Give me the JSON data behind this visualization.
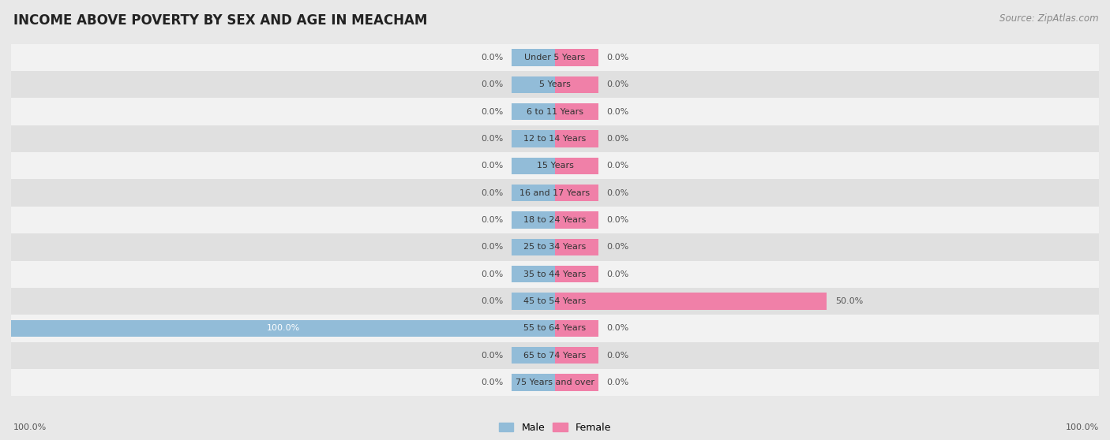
{
  "title": "INCOME ABOVE POVERTY BY SEX AND AGE IN MEACHAM",
  "source": "Source: ZipAtlas.com",
  "categories": [
    "Under 5 Years",
    "5 Years",
    "6 to 11 Years",
    "12 to 14 Years",
    "15 Years",
    "16 and 17 Years",
    "18 to 24 Years",
    "25 to 34 Years",
    "35 to 44 Years",
    "45 to 54 Years",
    "55 to 64 Years",
    "65 to 74 Years",
    "75 Years and over"
  ],
  "male_values": [
    0.0,
    0.0,
    0.0,
    0.0,
    0.0,
    0.0,
    0.0,
    0.0,
    0.0,
    0.0,
    100.0,
    0.0,
    0.0
  ],
  "female_values": [
    0.0,
    0.0,
    0.0,
    0.0,
    0.0,
    0.0,
    0.0,
    0.0,
    0.0,
    50.0,
    0.0,
    0.0,
    0.0
  ],
  "male_color": "#92bcd8",
  "female_color": "#f080a8",
  "male_label": "Male",
  "female_label": "Female",
  "bg_color": "#e8e8e8",
  "row_bg_light": "#f2f2f2",
  "row_bg_dark": "#e0e0e0",
  "max_value": 100.0,
  "stub_value": 8.0,
  "title_fontsize": 12,
  "source_fontsize": 8.5,
  "label_fontsize": 8,
  "category_fontsize": 8
}
